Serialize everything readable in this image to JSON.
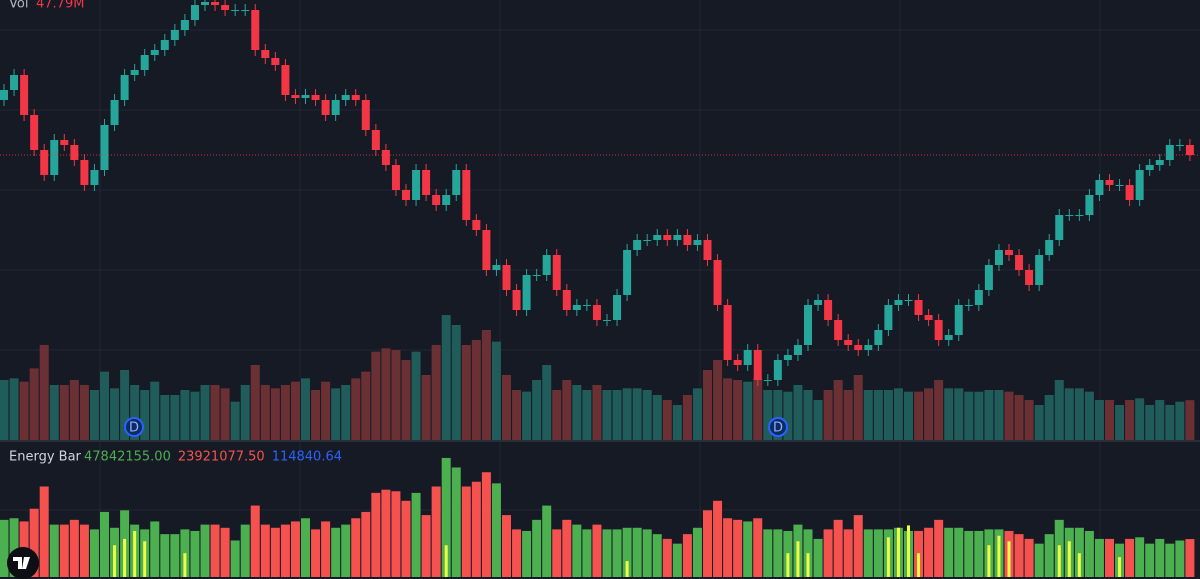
{
  "header": {
    "vol_label": "Vol",
    "vol_value": "47.79M"
  },
  "chart_data": {
    "type": "candlestick",
    "open": [
      340,
      350,
      365,
      325,
      290,
      265,
      300,
      295,
      280,
      255,
      270,
      315,
      340,
      365,
      370,
      385,
      390,
      400,
      410,
      420,
      435,
      438,
      435,
      430,
      430,
      430,
      390,
      382,
      375,
      345,
      342,
      345,
      340,
      325,
      340,
      345,
      340,
      310,
      290,
      275,
      250,
      240,
      270,
      245,
      235,
      245,
      270,
      220,
      210,
      170,
      175,
      150,
      130,
      165,
      165,
      185,
      150,
      130,
      135,
      135,
      120,
      120,
      145,
      190,
      200,
      200,
      205,
      200,
      205,
      195,
      200,
      180,
      135,
      80,
      75,
      90,
      60,
      60,
      80,
      85,
      95,
      135,
      140,
      120,
      100,
      95,
      90,
      95,
      110,
      135,
      140,
      140,
      125,
      120,
      100,
      105,
      135,
      135,
      150,
      175,
      190,
      185,
      170,
      155,
      185,
      200,
      225,
      225,
      225,
      245,
      260,
      255,
      255,
      240,
      270,
      275,
      280,
      295,
      295
    ],
    "high": [
      356,
      371,
      371,
      331,
      296,
      306,
      306,
      301,
      286,
      276,
      321,
      346,
      371,
      376,
      391,
      396,
      406,
      416,
      426,
      441,
      444,
      444,
      441,
      436,
      436,
      436,
      396,
      388,
      381,
      351,
      351,
      351,
      346,
      346,
      351,
      351,
      346,
      316,
      296,
      281,
      256,
      276,
      276,
      251,
      251,
      276,
      276,
      226,
      216,
      181,
      181,
      156,
      171,
      171,
      191,
      191,
      156,
      141,
      141,
      141,
      126,
      151,
      196,
      206,
      206,
      211,
      211,
      211,
      211,
      206,
      206,
      186,
      141,
      86,
      96,
      96,
      66,
      86,
      91,
      101,
      141,
      146,
      146,
      126,
      106,
      101,
      101,
      116,
      141,
      146,
      146,
      146,
      131,
      126,
      111,
      141,
      141,
      156,
      181,
      196,
      196,
      191,
      176,
      191,
      206,
      231,
      231,
      231,
      251,
      266,
      266,
      261,
      261,
      276,
      281,
      286,
      301,
      301,
      301
    ],
    "low": [
      334,
      344,
      319,
      284,
      259,
      259,
      289,
      274,
      249,
      249,
      264,
      309,
      334,
      359,
      364,
      379,
      384,
      394,
      404,
      414,
      429,
      429,
      424,
      424,
      424,
      384,
      376,
      369,
      339,
      336,
      336,
      334,
      319,
      319,
      334,
      334,
      304,
      284,
      269,
      244,
      234,
      234,
      239,
      229,
      229,
      239,
      214,
      204,
      164,
      164,
      144,
      124,
      124,
      159,
      159,
      144,
      124,
      124,
      129,
      114,
      114,
      114,
      139,
      184,
      194,
      194,
      194,
      194,
      189,
      189,
      174,
      129,
      74,
      69,
      69,
      54,
      54,
      54,
      74,
      79,
      89,
      129,
      114,
      94,
      89,
      84,
      84,
      89,
      104,
      129,
      134,
      119,
      114,
      94,
      94,
      99,
      129,
      129,
      144,
      169,
      179,
      164,
      149,
      149,
      179,
      194,
      219,
      219,
      219,
      239,
      249,
      249,
      234,
      234,
      264,
      269,
      274,
      289,
      279
    ],
    "close": [
      350,
      365,
      325,
      290,
      265,
      300,
      295,
      280,
      255,
      270,
      315,
      340,
      365,
      370,
      385,
      390,
      400,
      410,
      420,
      435,
      438,
      435,
      430,
      430,
      430,
      390,
      382,
      375,
      345,
      342,
      345,
      340,
      325,
      340,
      345,
      340,
      310,
      290,
      275,
      250,
      240,
      270,
      245,
      235,
      245,
      270,
      220,
      210,
      170,
      175,
      150,
      130,
      165,
      165,
      185,
      150,
      130,
      135,
      135,
      120,
      120,
      145,
      190,
      200,
      200,
      205,
      200,
      205,
      195,
      200,
      180,
      135,
      80,
      75,
      90,
      60,
      60,
      80,
      85,
      95,
      135,
      140,
      120,
      100,
      95,
      90,
      95,
      110,
      135,
      140,
      140,
      125,
      120,
      100,
      105,
      135,
      135,
      150,
      175,
      190,
      185,
      170,
      155,
      185,
      200,
      225,
      225,
      225,
      245,
      260,
      255,
      255,
      240,
      270,
      275,
      280,
      295,
      295,
      285
    ],
    "ylim": [
      0,
      440
    ],
    "colors": {
      "up": "#26a69a",
      "down": "#f23645"
    },
    "volume": {
      "values": [
        72,
        74,
        70,
        86,
        114,
        66,
        66,
        72,
        66,
        60,
        82,
        62,
        84,
        66,
        60,
        70,
        54,
        54,
        60,
        58,
        66,
        66,
        62,
        46,
        66,
        90,
        66,
        62,
        66,
        70,
        74,
        60,
        70,
        62,
        66,
        74,
        82,
        106,
        110,
        108,
        96,
        106,
        78,
        114,
        150,
        138,
        114,
        120,
        132,
        118,
        78,
        60,
        58,
        72,
        90,
        60,
        72,
        66,
        60,
        66,
        60,
        60,
        62,
        62,
        60,
        54,
        48,
        42,
        54,
        62,
        84,
        96,
        74,
        72,
        70,
        74,
        60,
        60,
        58,
        66,
        60,
        48,
        60,
        72,
        60,
        78,
        60,
        60,
        60,
        62,
        58,
        58,
        62,
        72,
        62,
        62,
        58,
        58,
        60,
        60,
        58,
        54,
        48,
        42,
        54,
        72,
        62,
        62,
        58,
        48,
        48,
        42,
        48,
        50,
        42,
        48,
        42,
        46,
        47.79
      ],
      "ylim": [
        0,
        168
      ],
      "colors": {
        "up": "#1f5c5a",
        "down": "#6b3034"
      }
    },
    "events": [
      "D",
      "D"
    ]
  },
  "energy": {
    "title": "Energy Bar",
    "legend": [
      {
        "label": "47842155.00",
        "color": "#4caf50"
      },
      {
        "label": "23921077.50",
        "color": "#f5524f"
      },
      {
        "label": "114840.64",
        "color": "#2962ff"
      }
    ],
    "values": [
      72,
      74,
      70,
      86,
      114,
      66,
      66,
      72,
      66,
      60,
      82,
      62,
      84,
      66,
      60,
      70,
      54,
      54,
      60,
      58,
      66,
      66,
      62,
      46,
      66,
      90,
      66,
      62,
      66,
      70,
      74,
      60,
      70,
      62,
      66,
      74,
      82,
      106,
      110,
      108,
      96,
      106,
      78,
      114,
      150,
      138,
      114,
      120,
      132,
      118,
      78,
      60,
      58,
      72,
      90,
      60,
      72,
      66,
      60,
      66,
      60,
      60,
      62,
      62,
      60,
      54,
      48,
      42,
      54,
      62,
      84,
      96,
      74,
      72,
      70,
      74,
      60,
      60,
      58,
      66,
      60,
      48,
      60,
      72,
      60,
      78,
      60,
      60,
      60,
      62,
      58,
      58,
      62,
      72,
      62,
      62,
      58,
      58,
      60,
      60,
      58,
      54,
      48,
      42,
      54,
      72,
      62,
      62,
      58,
      48,
      48,
      42,
      48,
      50,
      42,
      48,
      42,
      46,
      47.79
    ],
    "yellow": [
      null,
      null,
      null,
      null,
      null,
      null,
      null,
      null,
      null,
      null,
      null,
      40,
      48,
      58,
      45,
      null,
      null,
      null,
      30,
      null,
      null,
      null,
      null,
      null,
      null,
      null,
      null,
      null,
      null,
      null,
      null,
      null,
      null,
      null,
      null,
      null,
      null,
      null,
      null,
      null,
      null,
      null,
      null,
      null,
      40,
      null,
      null,
      null,
      null,
      null,
      null,
      null,
      null,
      null,
      null,
      null,
      null,
      null,
      null,
      null,
      null,
      null,
      20,
      null,
      null,
      null,
      null,
      null,
      null,
      null,
      null,
      null,
      null,
      null,
      null,
      null,
      null,
      null,
      30,
      45,
      30,
      null,
      null,
      null,
      null,
      null,
      null,
      null,
      50,
      62,
      65,
      30,
      null,
      null,
      null,
      null,
      null,
      null,
      40,
      52,
      45,
      null,
      null,
      null,
      null,
      40,
      45,
      30,
      null,
      null,
      null,
      25,
      null,
      null,
      null,
      null,
      null,
      null,
      null
    ],
    "ylim": [
      0,
      160
    ],
    "colors": {
      "up": "#4caf50",
      "down": "#f5524f",
      "yellow": "#eeff41"
    }
  }
}
